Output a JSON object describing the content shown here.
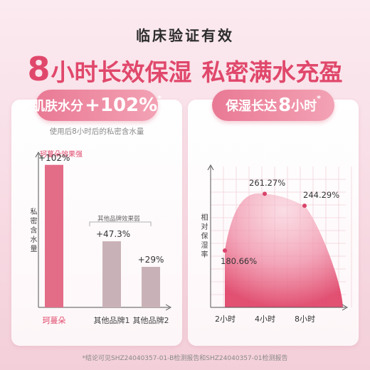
{
  "header": {
    "title": "临床验证有效",
    "headline_num": "8",
    "headline_unit": "小时",
    "headline_a": "长效保湿",
    "headline_b": "私密满水充盈"
  },
  "left_card": {
    "pill_text": "肌肤水分",
    "pill_value": "+102%",
    "pill_mark": "*",
    "subtitle": "使用后8小时后的私密含水量",
    "note": "珂蔓朵效果强",
    "ylabel": "私密含水量",
    "bracket_text": "其他品牌效果弱"
  },
  "right_card": {
    "pill_text": "保湿长达",
    "pill_value": "8",
    "pill_unit": "小时",
    "pill_mark": "*",
    "ylabel": "相对保湿率"
  },
  "footnote": "*结论可见SHZ24040357-01-B检测报告和SHZ24040357-01检测报告",
  "colors": {
    "accent": "#e0486b",
    "pill_start": "#e97994",
    "pill_end": "#f3a2b5",
    "bar_main": "#e36c87",
    "bar_other": "#c9b2b7"
  },
  "chart_data": [
    {
      "type": "bar",
      "categories": [
        "珂蔓朵",
        "其他品牌1",
        "其他品牌2"
      ],
      "values": [
        102,
        47.3,
        29
      ],
      "value_labels": [
        "+102%",
        "+47.3%",
        "+29%"
      ],
      "title": "肌肤水分+102%",
      "subtitle": "使用后8小时后的私密含水量",
      "ylabel": "私密含水量",
      "ylim": [
        0,
        110
      ],
      "grid": false
    },
    {
      "type": "area",
      "categories": [
        "2小时",
        "4小时",
        "8小时"
      ],
      "values": [
        180.66,
        261.27,
        244.29
      ],
      "value_labels": [
        "180.66%",
        "261.27%",
        "244.29%"
      ],
      "title": "保湿长达8小时",
      "ylabel": "相对保湿率",
      "ylim": [
        100,
        300
      ],
      "grid": true
    }
  ]
}
